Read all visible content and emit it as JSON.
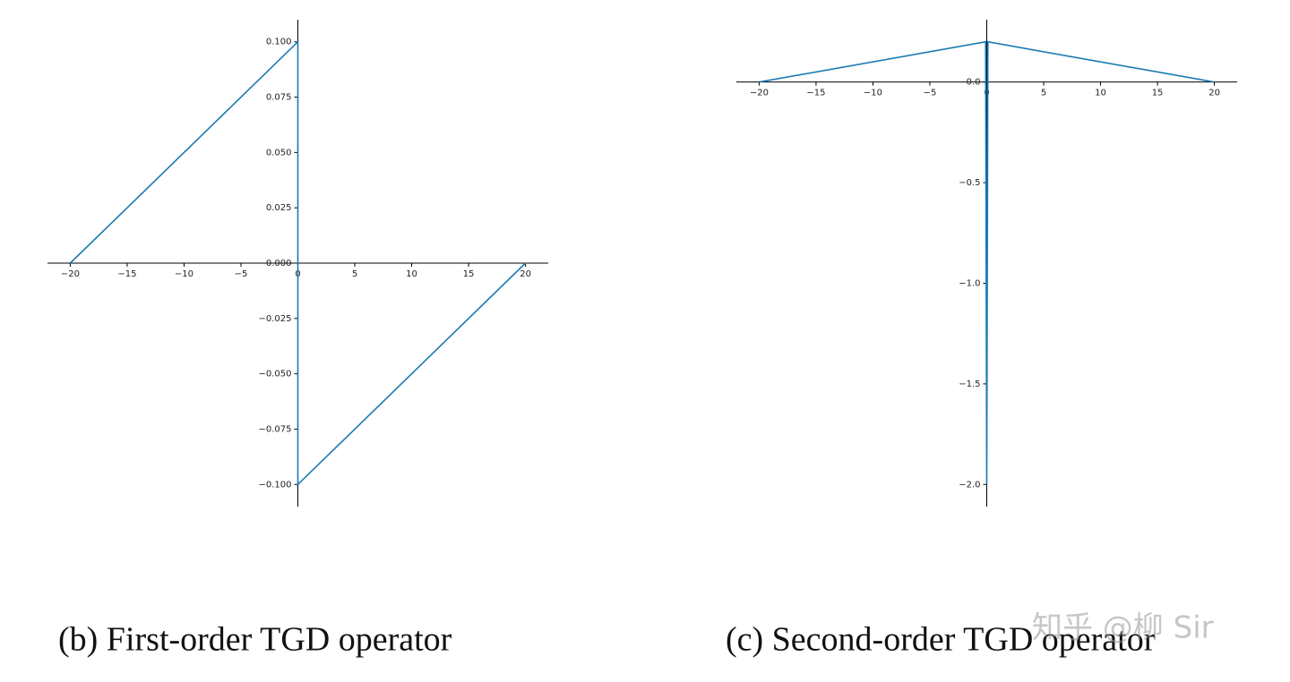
{
  "chart_data": [
    {
      "type": "line",
      "caption": "(b)  First-order TGD operator",
      "x": [
        -20,
        0,
        0,
        20
      ],
      "series": [
        {
          "color": "#1b7ab3",
          "values": [
            0,
            0.1,
            -0.1,
            0
          ]
        }
      ],
      "xlim": [
        -22,
        22
      ],
      "ylim": [
        -0.11,
        0.11
      ],
      "xticks": [
        {
          "value": -20,
          "label": "−20"
        },
        {
          "value": -15,
          "label": "−15"
        },
        {
          "value": -10,
          "label": "−10"
        },
        {
          "value": -5,
          "label": "−5"
        },
        0,
        5,
        10,
        15,
        20
      ],
      "yticks": [
        {
          "value": 0.1,
          "label": "0.100"
        },
        {
          "value": 0.075,
          "label": "0.075"
        },
        {
          "value": 0.05,
          "label": "0.050"
        },
        {
          "value": 0.025,
          "label": "0.025"
        },
        {
          "value": 0,
          "label": "0.000"
        },
        {
          "value": -0.025,
          "label": "−0.025"
        },
        {
          "value": -0.05,
          "label": "−0.050"
        },
        {
          "value": -0.075,
          "label": "−0.075"
        },
        {
          "value": -0.1,
          "label": "−0.100"
        }
      ]
    },
    {
      "type": "line",
      "caption": "(c)  Second-order TGD operator",
      "x": [
        -20,
        -0.1,
        0,
        0.1,
        20
      ],
      "series": [
        {
          "color": "#1b7ab3",
          "values": [
            0,
            0.2,
            -2,
            0.2,
            0
          ]
        }
      ],
      "xlim": [
        -22,
        22
      ],
      "ylim": [
        -2.11,
        0.31
      ],
      "xticks": [
        {
          "value": -20,
          "label": "−20"
        },
        {
          "value": -15,
          "label": "−15"
        },
        {
          "value": -10,
          "label": "−10"
        },
        {
          "value": -5,
          "label": "−5"
        },
        0,
        5,
        10,
        15,
        20
      ],
      "yticks": [
        {
          "value": 0,
          "label": "0.0"
        },
        {
          "value": -0.5,
          "label": "−0.5"
        },
        {
          "value": -1,
          "label": "−1.0"
        },
        {
          "value": -1.5,
          "label": "−1.5"
        },
        {
          "value": -2,
          "label": "−2.0"
        }
      ]
    }
  ],
  "watermark": "知乎 @柳 Sir"
}
